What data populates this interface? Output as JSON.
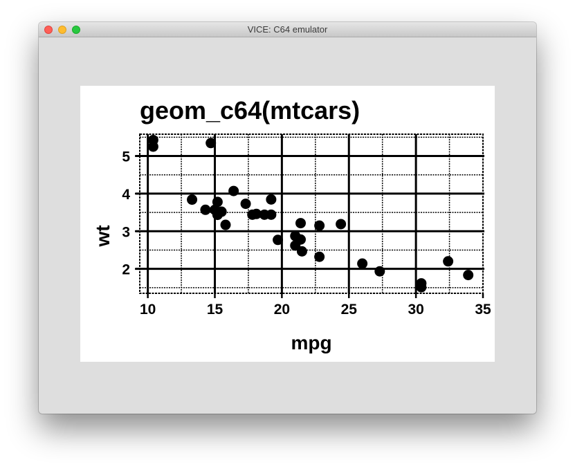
{
  "window": {
    "title": "VICE: C64 emulator"
  },
  "chart_data": {
    "type": "scatter",
    "title": "geom_c64(mtcars)",
    "xlabel": "mpg",
    "ylabel": "wt",
    "xlim": [
      9.4,
      35.0
    ],
    "ylim": [
      1.35,
      5.58
    ],
    "xticks": [
      "10",
      "15",
      "20",
      "25",
      "30",
      "35"
    ],
    "yticks": [
      "2",
      "3",
      "4",
      "5"
    ],
    "grid": true,
    "points": [
      {
        "x": 21.0,
        "y": 2.62
      },
      {
        "x": 21.0,
        "y": 2.875
      },
      {
        "x": 22.8,
        "y": 2.32
      },
      {
        "x": 21.4,
        "y": 3.215
      },
      {
        "x": 18.7,
        "y": 3.44
      },
      {
        "x": 18.1,
        "y": 3.46
      },
      {
        "x": 14.3,
        "y": 3.57
      },
      {
        "x": 24.4,
        "y": 3.19
      },
      {
        "x": 22.8,
        "y": 3.15
      },
      {
        "x": 19.2,
        "y": 3.44
      },
      {
        "x": 17.8,
        "y": 3.44
      },
      {
        "x": 16.4,
        "y": 4.07
      },
      {
        "x": 17.3,
        "y": 3.73
      },
      {
        "x": 15.2,
        "y": 3.78
      },
      {
        "x": 10.4,
        "y": 5.25
      },
      {
        "x": 10.4,
        "y": 5.424
      },
      {
        "x": 14.7,
        "y": 5.345
      },
      {
        "x": 32.4,
        "y": 2.2
      },
      {
        "x": 30.4,
        "y": 1.615
      },
      {
        "x": 33.9,
        "y": 1.835
      },
      {
        "x": 21.5,
        "y": 2.465
      },
      {
        "x": 15.5,
        "y": 3.52
      },
      {
        "x": 15.2,
        "y": 3.435
      },
      {
        "x": 13.3,
        "y": 3.84
      },
      {
        "x": 19.2,
        "y": 3.845
      },
      {
        "x": 27.3,
        "y": 1.935
      },
      {
        "x": 26.0,
        "y": 2.14
      },
      {
        "x": 30.4,
        "y": 1.513
      },
      {
        "x": 15.8,
        "y": 3.17
      },
      {
        "x": 19.7,
        "y": 2.77
      },
      {
        "x": 15.0,
        "y": 3.57
      },
      {
        "x": 21.4,
        "y": 2.78
      }
    ]
  }
}
